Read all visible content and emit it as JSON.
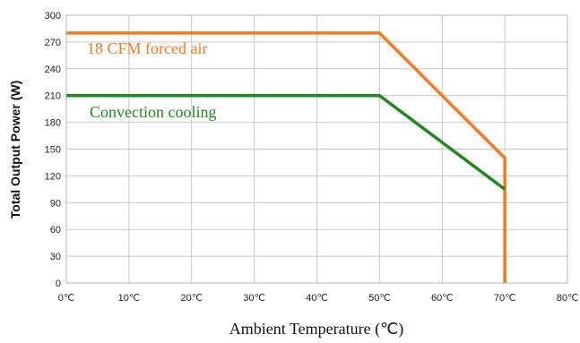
{
  "chart_data": {
    "type": "line",
    "xlabel": "Ambient Temperature (℃)",
    "ylabel": "Total Output Power (W)",
    "xlim": [
      0,
      80
    ],
    "ylim": [
      0,
      300
    ],
    "x_ticks": [
      0,
      10,
      20,
      30,
      40,
      50,
      60,
      70,
      80
    ],
    "x_tick_labels": [
      "0℃",
      "10℃",
      "20℃",
      "30℃",
      "40℃",
      "50℃",
      "60℃",
      "70℃",
      "80℃"
    ],
    "y_ticks": [
      0,
      30,
      60,
      90,
      120,
      150,
      180,
      210,
      240,
      270,
      300
    ],
    "y_tick_labels": [
      "0",
      "30",
      "60",
      "90",
      "120",
      "150",
      "180",
      "210",
      "240",
      "270",
      "300"
    ],
    "grid": true,
    "series": [
      {
        "name": "18 CFM forced air",
        "color": "#f47a20",
        "points": [
          [
            0,
            280
          ],
          [
            50,
            280
          ],
          [
            70,
            140
          ],
          [
            70,
            0
          ]
        ]
      },
      {
        "name": "Convection cooling",
        "color": "#1e8a1e",
        "points": [
          [
            0,
            210
          ],
          [
            50,
            210
          ],
          [
            70,
            105
          ]
        ]
      }
    ]
  }
}
